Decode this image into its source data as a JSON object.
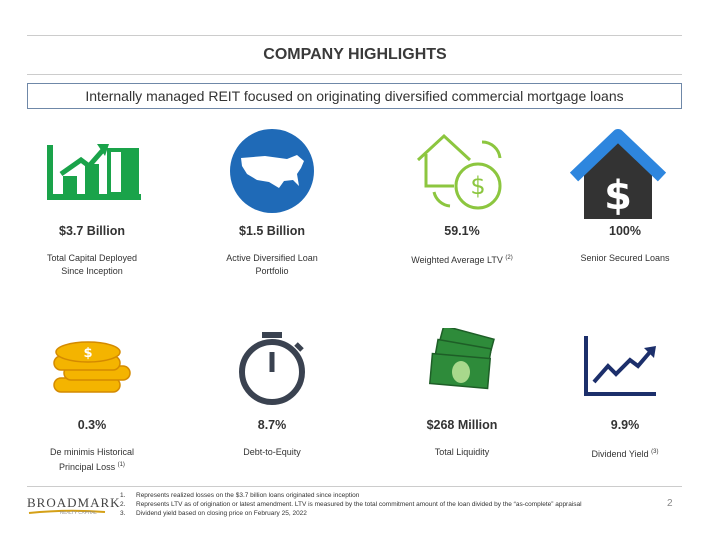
{
  "header": {
    "title": "COMPANY HIGHLIGHTS",
    "subtitle": "Internally managed REIT focused on originating diversified commercial mortgage loans"
  },
  "highlights": [
    {
      "value": "$3.7 Billion",
      "label": [
        "Total Capital Deployed",
        "Since Inception"
      ]
    },
    {
      "value": "$1.5 Billion",
      "label": [
        "Active Diversified Loan",
        "Portfolio"
      ]
    },
    {
      "value": "59.1%",
      "label": [
        "Weighted Average LTV"
      ],
      "note": "(2)"
    },
    {
      "value": "100%",
      "label": [
        "Senior Secured Loans"
      ]
    },
    {
      "value": "0.3%",
      "label": [
        "De minimis Historical",
        "Principal Loss"
      ],
      "note": "(1)"
    },
    {
      "value": "8.7%",
      "label": [
        "Debt-to-Equity"
      ]
    },
    {
      "value": "$268 Million",
      "label": [
        "Total Liquidity"
      ]
    },
    {
      "value": "9.9%",
      "label": [
        "Dividend Yield"
      ],
      "note": "(3)"
    }
  ],
  "footer": {
    "logo": "BROADMARK",
    "logo_tagline": "REALTY CAPITAL",
    "footnotes": [
      {
        "number": "1.",
        "text": "Represents realized losses on the $3.7 billion loans originated since inception"
      },
      {
        "number": "2.",
        "text": "Represents LTV as of origination or latest amendment. LTV is measured by the total commitment amount of the loan divided by the “as-complete” appraisal"
      },
      {
        "number": "3.",
        "text": "Dividend yield based on closing price on February 25, 2022"
      }
    ],
    "page_number": "2"
  }
}
